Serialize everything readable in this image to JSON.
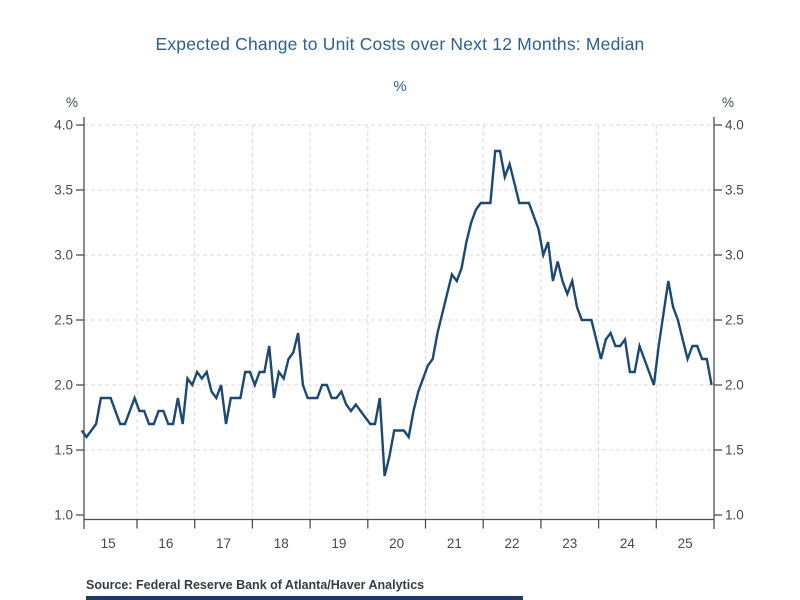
{
  "header": {
    "title": "Expected Change to Unit Costs over Next 12 Months: Median",
    "subtitle_unit": "%"
  },
  "axes": {
    "left_unit": "%",
    "right_unit": "%",
    "y_tick_labels": [
      "4.0",
      "3.5",
      "3.0",
      "2.5",
      "2.0",
      "1.5",
      "1.0"
    ],
    "x_tick_labels": [
      "15",
      "16",
      "17",
      "18",
      "19",
      "20",
      "21",
      "22",
      "23",
      "24",
      "25"
    ]
  },
  "footer": {
    "source": "Source:  Federal Reserve Bank of Atlanta/Haver Analytics"
  },
  "colors": {
    "title": "#2d608f",
    "line": "#1c4872",
    "grid": "#d9d9d9",
    "axis": "#4f4f4f",
    "tick_label": "#414b55",
    "source": "#333d48",
    "accent_bar": "#1f3a5f"
  },
  "chart_data": {
    "type": "line",
    "title": "Expected Change to Unit Costs over Next 12 Months: Median",
    "unit": "%",
    "xlabel": "",
    "ylabel": "%",
    "ylim": [
      1.0,
      4.0
    ],
    "y_ticks": [
      1.0,
      1.5,
      2.0,
      2.5,
      3.0,
      3.5,
      4.0
    ],
    "x_axis": {
      "start": "2015-01",
      "end": "2025-12",
      "frequency": "monthly",
      "tick_labels_years": [
        "15",
        "16",
        "17",
        "18",
        "19",
        "20",
        "21",
        "22",
        "23",
        "24",
        "25"
      ]
    },
    "grid": "light dashed horizontal at 0.5% steps and vertical at year boundaries",
    "legend_position": "none",
    "source": "Federal Reserve Bank of Atlanta/Haver Analytics",
    "series": [
      {
        "name": "Median expected unit cost change over next 12 months",
        "color": "#1c4872",
        "values": [
          1.65,
          1.6,
          1.65,
          1.7,
          1.9,
          1.9,
          1.9,
          1.8,
          1.7,
          1.7,
          1.8,
          1.9,
          1.8,
          1.8,
          1.7,
          1.7,
          1.8,
          1.8,
          1.7,
          1.7,
          1.9,
          1.7,
          2.05,
          2.0,
          2.1,
          2.05,
          2.1,
          1.95,
          1.9,
          2.0,
          1.7,
          1.9,
          1.9,
          1.9,
          2.1,
          2.1,
          2.0,
          2.1,
          2.1,
          2.3,
          1.9,
          2.1,
          2.05,
          2.2,
          2.25,
          2.4,
          2.0,
          1.9,
          1.9,
          1.9,
          2.0,
          2.0,
          1.9,
          1.9,
          1.95,
          1.85,
          1.8,
          1.85,
          1.8,
          1.75,
          1.7,
          1.7,
          1.9,
          1.3,
          1.45,
          1.65,
          1.65,
          1.65,
          1.6,
          1.8,
          1.95,
          2.05,
          2.15,
          2.2,
          2.4,
          2.55,
          2.7,
          2.85,
          2.8,
          2.9,
          3.1,
          3.25,
          3.35,
          3.4,
          3.4,
          3.4,
          3.8,
          3.8,
          3.6,
          3.7,
          3.55,
          3.4,
          3.4,
          3.4,
          3.3,
          3.2,
          3.0,
          3.1,
          2.8,
          2.95,
          2.8,
          2.7,
          2.8,
          2.6,
          2.5,
          2.5,
          2.5,
          2.35,
          2.2,
          2.35,
          2.4,
          2.3,
          2.3,
          2.35,
          2.1,
          2.1,
          2.3,
          2.2,
          2.1,
          2.0,
          2.3,
          2.55,
          2.8,
          2.6,
          2.5,
          2.35,
          2.2,
          2.3,
          2.3,
          2.2,
          2.2,
          2.0
        ]
      }
    ]
  }
}
